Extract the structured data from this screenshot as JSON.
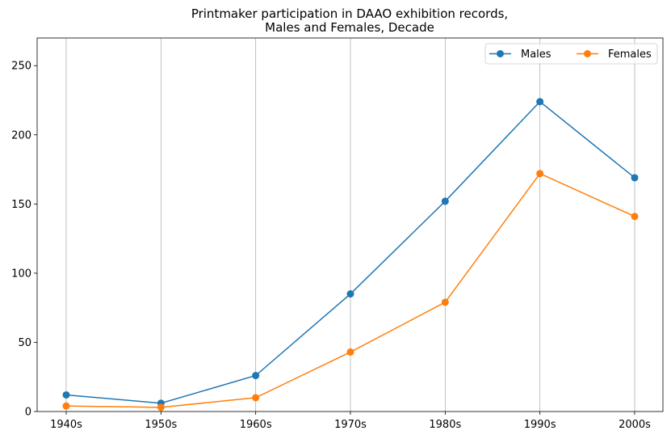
{
  "chart_data": {
    "type": "line",
    "title_lines": [
      "Printmaker participation in DAAO exhibition records,",
      "Males and Females, Decade"
    ],
    "xlabel": "",
    "ylabel": "",
    "categories": [
      "1940s",
      "1950s",
      "1960s",
      "1970s",
      "1980s",
      "1990s",
      "2000s"
    ],
    "series": [
      {
        "name": "Males",
        "color": "#1f77b4",
        "values": [
          12,
          6,
          26,
          85,
          152,
          224,
          169
        ]
      },
      {
        "name": "Females",
        "color": "#ff7f0e",
        "values": [
          4,
          3,
          10,
          43,
          79,
          172,
          141
        ]
      }
    ],
    "ylim": [
      0,
      270
    ],
    "yticks": [
      0,
      50,
      100,
      150,
      200,
      250
    ],
    "grid": "vertical",
    "legend_position": "top-right",
    "marker": "circle"
  }
}
